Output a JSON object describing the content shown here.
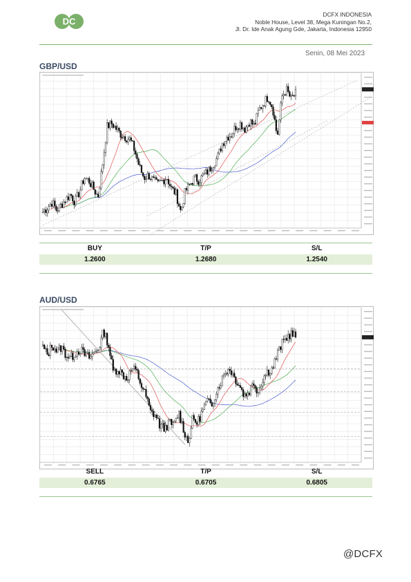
{
  "header": {
    "logo_text": "DC",
    "company": [
      "DCFX INDONESIA",
      "Noble House, Level 38, Mega Kuningan No.2,",
      "Jl. Dr. Ide Anak Agung Gde, Jakarta, Indonesia 12950"
    ],
    "date": "Senin, 08 Mei 2023"
  },
  "colors": {
    "brand_green": "#7bb06a",
    "row_fill": "#e3efd8",
    "title_blue": "#3a4a63"
  },
  "gbp": {
    "title": "GBP/USD",
    "labels": {
      "buy": "BUY",
      "tp": "T/P",
      "sl": "S/L"
    },
    "values": {
      "buy": "1.2600",
      "tp": "1.2680",
      "sl": "1.2540"
    }
  },
  "aud": {
    "title": "AUD/USD",
    "labels": {
      "sell": "SELL",
      "tp": "T/P",
      "sl": "S/L"
    },
    "values": {
      "sell": "0.6765",
      "tp": "0.6705",
      "sl": "0.6805"
    }
  },
  "watermark": "@DCFX",
  "chart_data": [
    {
      "type": "candlestick",
      "pair": "GBP/USD",
      "indicators": [
        "moving averages (red, green, blue)",
        "ascending channel (dotted)"
      ],
      "trend": [
        0.05,
        0.08,
        0.12,
        0.06,
        0.1,
        0.14,
        0.18,
        0.12,
        0.2,
        0.3,
        0.28,
        0.22,
        0.16,
        0.4,
        0.68,
        0.7,
        0.66,
        0.62,
        0.6,
        0.58,
        0.5,
        0.38,
        0.3,
        0.32,
        0.28,
        0.25,
        0.28,
        0.3,
        0.22,
        0.18,
        0.05,
        0.2,
        0.25,
        0.3,
        0.28,
        0.32,
        0.35,
        0.4,
        0.45,
        0.55,
        0.6,
        0.62,
        0.68,
        0.7,
        0.66,
        0.72,
        0.68,
        0.8,
        0.85,
        0.9,
        0.82,
        0.6,
        0.9,
        0.95,
        0.88,
        0.92
      ]
    },
    {
      "type": "candlestick",
      "pair": "AUD/USD",
      "indicators": [
        "moving averages (red, green, blue)",
        "descending trendline"
      ],
      "trend": [
        0.78,
        0.72,
        0.8,
        0.75,
        0.78,
        0.72,
        0.7,
        0.74,
        0.76,
        0.72,
        0.7,
        0.74,
        0.78,
        0.9,
        0.8,
        0.6,
        0.62,
        0.58,
        0.55,
        0.62,
        0.6,
        0.5,
        0.42,
        0.3,
        0.28,
        0.2,
        0.18,
        0.22,
        0.2,
        0.3,
        0.18,
        0.08,
        0.25,
        0.22,
        0.3,
        0.38,
        0.35,
        0.45,
        0.52,
        0.6,
        0.62,
        0.55,
        0.5,
        0.42,
        0.45,
        0.52,
        0.45,
        0.55,
        0.6,
        0.62,
        0.72,
        0.8,
        0.85,
        0.88,
        0.86
      ]
    }
  ]
}
